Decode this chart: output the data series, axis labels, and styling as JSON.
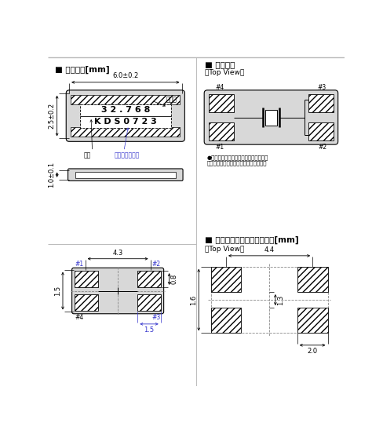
{
  "title_left": "■ 外形寸法[mm]",
  "title_right": "■ 内部接続",
  "top_view_label": "〈Top View〉",
  "dim_width": "6.0±0.2",
  "dim_height": "2.5±0.2",
  "dim_thickness": "1.0±0.1",
  "text_freq": "周波数",
  "text_company": "社名",
  "text_lot": "製造ロット番号",
  "text_freq_val": "3 2 . 7 6 8",
  "text_lot_val": "K D S 0 7 2 3",
  "note": "●端子＃２、＃３は電気的にオープンに\nなるように基板に取り付けてください。",
  "land_title": "■ ランドパターン（参考）　[mm]",
  "land_top_view": "〈Top View〉",
  "bg_color": "#ffffff",
  "line_color": "#000000",
  "blue_dim_color": "#3333cc"
}
